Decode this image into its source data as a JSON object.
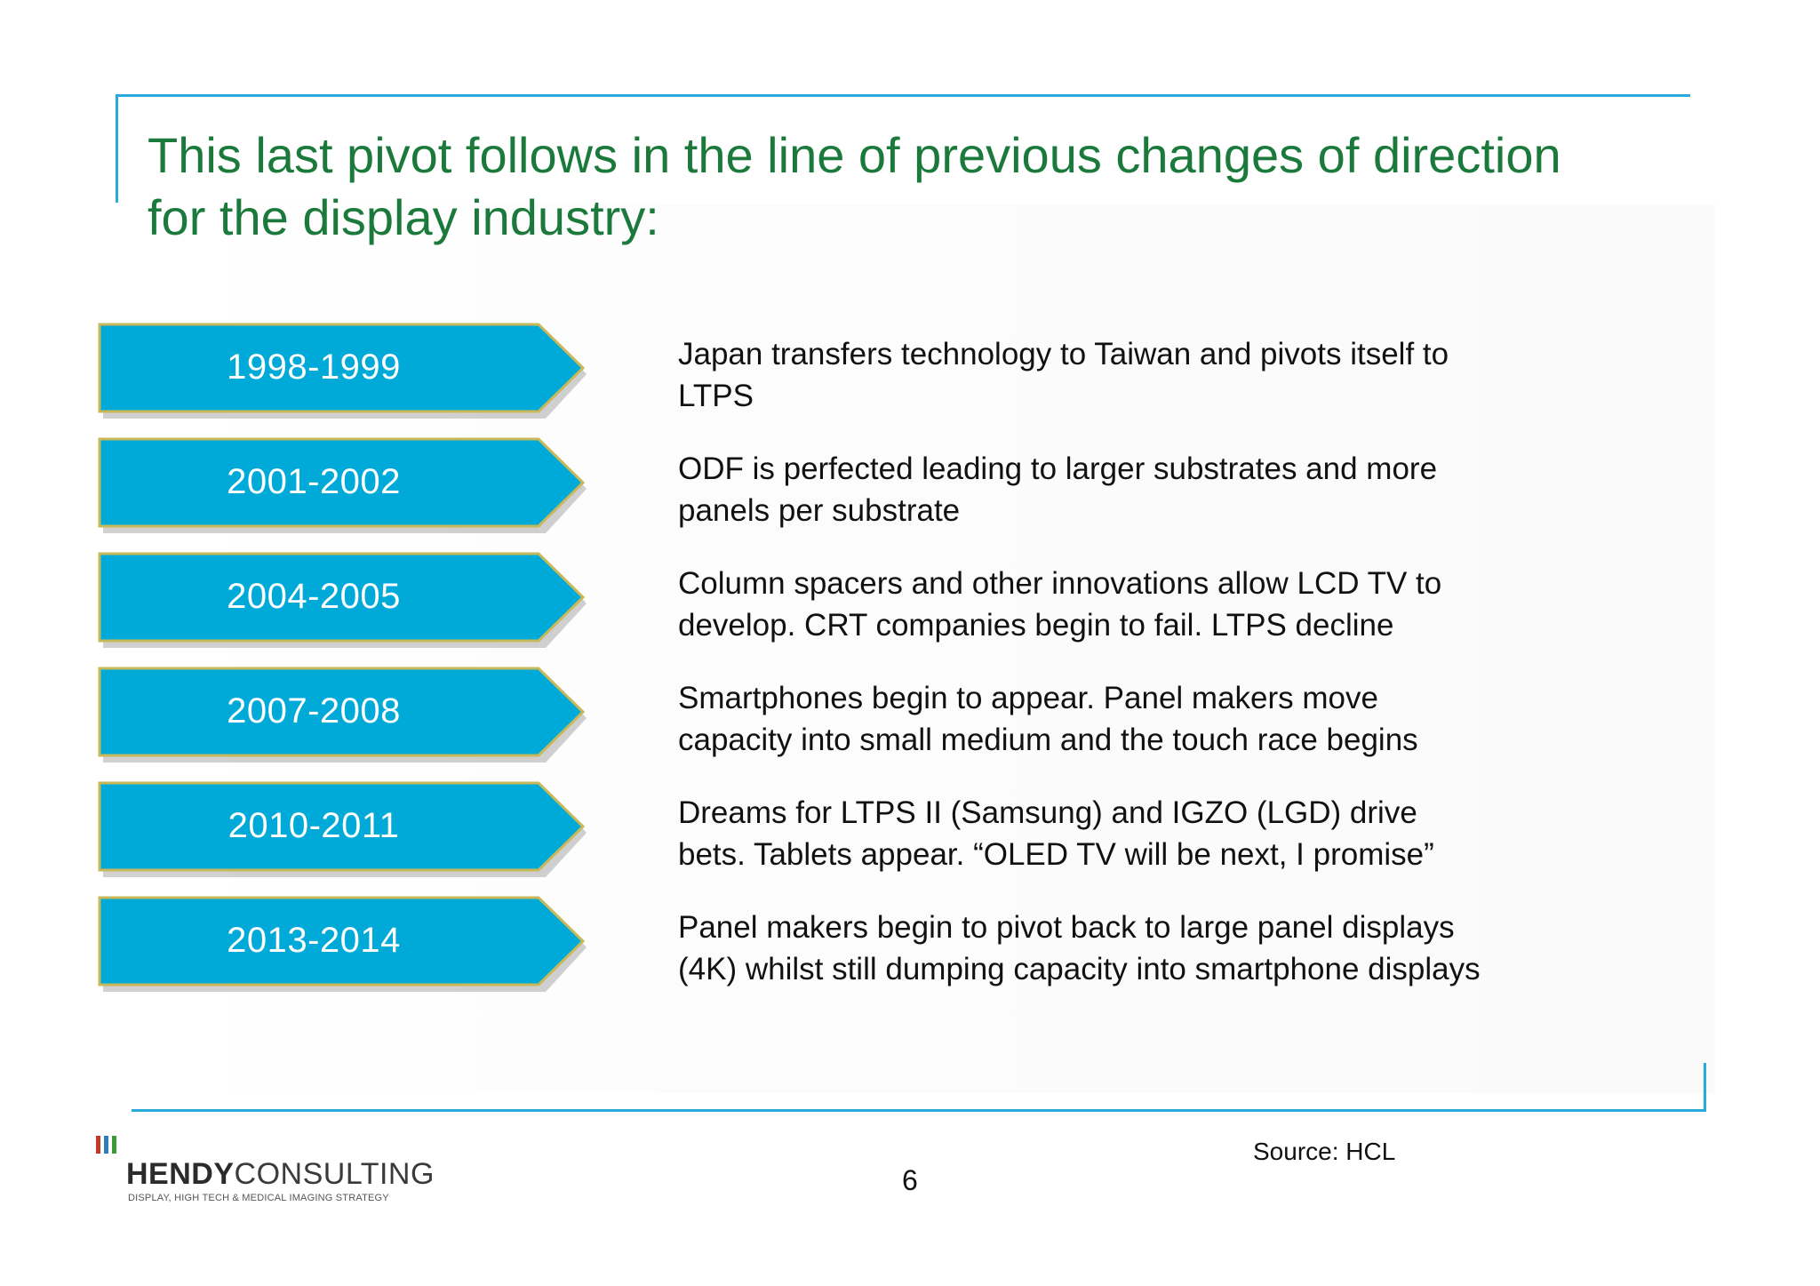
{
  "slide": {
    "title": "This last pivot follows in the line of previous changes of direction\nfor the display industry:",
    "source": "Source: HCL",
    "page_number": "6"
  },
  "colors": {
    "title": "#1b7a3b",
    "frame": "#2aa9dc",
    "arrow_fill": "#00aad8",
    "arrow_border": "#c8b85a",
    "logo_bar_1": "#c0392b",
    "logo_bar_2": "#2e7bbf",
    "logo_bar_3": "#3a9a3a"
  },
  "timeline": [
    {
      "period": "1998-1999",
      "text": "Japan transfers technology to Taiwan and pivots itself to\nLTPS"
    },
    {
      "period": "2001-2002",
      "text": "ODF is perfected leading to larger substrates and more\npanels per substrate"
    },
    {
      "period": "2004-2005",
      "text": "Column spacers and other innovations allow LCD TV to\ndevelop. CRT companies begin to fail. LTPS decline"
    },
    {
      "period": "2007-2008",
      "text": "Smartphones begin to appear. Panel makers move\ncapacity into small medium and the touch race begins"
    },
    {
      "period": "2010-2011",
      "text": "Dreams for LTPS II (Samsung) and IGZO (LGD) drive\nbets. Tablets appear. “OLED TV will be next, I promise”"
    },
    {
      "period": "2013-2014",
      "text": "Panel makers begin to pivot back to large panel displays\n(4K) whilst still dumping capacity into smartphone displays"
    }
  ],
  "logo": {
    "name_bold": "HENDY",
    "name_light": "CONSULTING",
    "tagline": "DISPLAY, HIGH TECH & MEDICAL IMAGING STRATEGY"
  }
}
